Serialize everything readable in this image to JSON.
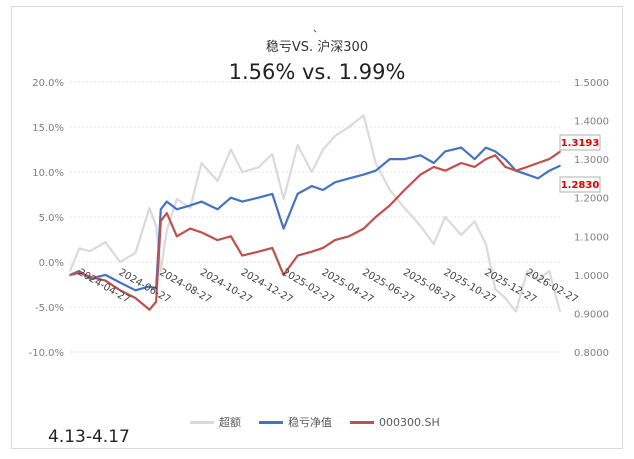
{
  "header": {
    "mark": "、",
    "title": "稳亏VS. 沪深300",
    "subtitle": "1.56% vs. 1.99%"
  },
  "footer": {
    "date_range": "4.13-4.17"
  },
  "colors": {
    "excess": "#dadada",
    "fund": "#4472c4",
    "index": "#c0504d",
    "grid": "#e3e3e3",
    "axis_text": "#7f7f7f"
  },
  "chart_data": {
    "type": "line",
    "title": "稳亏VS. 沪深300",
    "subtitle": "1.56% vs. 1.99%",
    "x_tick_labels": [
      "2024-04-27",
      "2024-06-27",
      "2024-08-27",
      "2024-10-27",
      "2024-12-27",
      "2025-02-27",
      "2025-04-27",
      "2025-06-27",
      "2025-08-27",
      "2025-10-27",
      "2025-12-27",
      "2026-02-27"
    ],
    "x_range": [
      "2024-04-13",
      "2026-04-17"
    ],
    "y_left": {
      "range": [
        -10,
        20
      ],
      "ticks": [
        "20.0%",
        "15.0%",
        "10.0%",
        "5.0%",
        "0.0%",
        "-5.0%",
        "-10.0%"
      ]
    },
    "y_right": {
      "range": [
        0.8,
        1.5
      ],
      "ticks": [
        "1.5000",
        "1.4000",
        "1.3000",
        "1.2000",
        "1.1000",
        "1.0000",
        "0.9000",
        "0.8000"
      ]
    },
    "grid": true,
    "legend_position": "bottom",
    "end_labels": [
      "1.3193",
      "1.2830"
    ],
    "series": [
      {
        "name": "超额",
        "axis": "left",
        "x": [
          "2024-04-13",
          "2024-04-27",
          "2024-05-13",
          "2024-06-05",
          "2024-06-27",
          "2024-07-20",
          "2024-08-10",
          "2024-08-20",
          "2024-08-27",
          "2024-09-05",
          "2024-09-20",
          "2024-10-10",
          "2024-10-27",
          "2024-11-20",
          "2024-12-10",
          "2024-12-27",
          "2025-01-20",
          "2025-02-10",
          "2025-02-27",
          "2025-03-20",
          "2025-04-10",
          "2025-04-27",
          "2025-05-15",
          "2025-06-05",
          "2025-06-27",
          "2025-07-15",
          "2025-08-05",
          "2025-08-27",
          "2025-09-20",
          "2025-10-10",
          "2025-10-27",
          "2025-11-20",
          "2025-12-10",
          "2025-12-27",
          "2026-01-10",
          "2026-01-25",
          "2026-02-10",
          "2026-02-27",
          "2026-03-15",
          "2026-04-01",
          "2026-04-17"
        ],
        "y": [
          -1,
          1.5,
          1.2,
          2.2,
          0,
          1.0,
          6.0,
          4.0,
          -1.0,
          3.5,
          7.0,
          6.0,
          11.0,
          9.0,
          12.5,
          10.0,
          10.5,
          12.0,
          7.0,
          13.0,
          10.0,
          12.5,
          14.0,
          15.0,
          16.3,
          11.0,
          8.0,
          6.0,
          4.0,
          2.0,
          5.0,
          3.0,
          4.5,
          2.0,
          -3.0,
          -4.0,
          -5.5,
          -1.0,
          -2.0,
          -1.0,
          -5.5
        ]
      },
      {
        "name": "稳亏净值",
        "axis": "right",
        "x": [
          "2024-04-13",
          "2024-04-27",
          "2024-05-13",
          "2024-06-05",
          "2024-06-27",
          "2024-07-20",
          "2024-08-10",
          "2024-08-20",
          "2024-08-27",
          "2024-09-05",
          "2024-09-20",
          "2024-10-10",
          "2024-10-27",
          "2024-11-20",
          "2024-12-10",
          "2024-12-27",
          "2025-01-20",
          "2025-02-10",
          "2025-02-27",
          "2025-03-20",
          "2025-04-10",
          "2025-04-27",
          "2025-05-15",
          "2025-06-05",
          "2025-06-27",
          "2025-07-15",
          "2025-08-05",
          "2025-08-27",
          "2025-09-20",
          "2025-10-10",
          "2025-10-27",
          "2025-11-20",
          "2025-12-10",
          "2025-12-27",
          "2026-01-10",
          "2026-01-25",
          "2026-02-10",
          "2026-02-27",
          "2026-03-15",
          "2026-04-01",
          "2026-04-17"
        ],
        "y": [
          1.0,
          1.01,
          0.99,
          1.0,
          0.98,
          0.96,
          0.97,
          0.965,
          1.17,
          1.19,
          1.17,
          1.18,
          1.19,
          1.17,
          1.2,
          1.19,
          1.2,
          1.21,
          1.12,
          1.21,
          1.23,
          1.22,
          1.24,
          1.25,
          1.26,
          1.27,
          1.3,
          1.3,
          1.31,
          1.29,
          1.32,
          1.33,
          1.3,
          1.33,
          1.32,
          1.3,
          1.27,
          1.26,
          1.25,
          1.27,
          1.283
        ]
      },
      {
        "name": "000300.SH",
        "axis": "right",
        "x": [
          "2024-04-13",
          "2024-04-27",
          "2024-05-13",
          "2024-06-05",
          "2024-06-27",
          "2024-07-20",
          "2024-08-10",
          "2024-08-20",
          "2024-08-27",
          "2024-09-05",
          "2024-09-20",
          "2024-10-10",
          "2024-10-27",
          "2024-11-20",
          "2024-12-10",
          "2024-12-27",
          "2025-01-20",
          "2025-02-10",
          "2025-02-27",
          "2025-03-20",
          "2025-04-10",
          "2025-04-27",
          "2025-05-15",
          "2025-06-05",
          "2025-06-27",
          "2025-07-15",
          "2025-08-05",
          "2025-08-27",
          "2025-09-20",
          "2025-10-10",
          "2025-10-27",
          "2025-11-20",
          "2025-12-10",
          "2025-12-27",
          "2026-01-10",
          "2026-01-25",
          "2026-02-10",
          "2026-02-27",
          "2026-03-15",
          "2026-04-01",
          "2026-04-17"
        ],
        "y": [
          1.0,
          1.005,
          0.995,
          0.985,
          0.96,
          0.94,
          0.91,
          0.93,
          1.14,
          1.16,
          1.1,
          1.12,
          1.11,
          1.09,
          1.1,
          1.05,
          1.06,
          1.07,
          1.0,
          1.05,
          1.06,
          1.07,
          1.09,
          1.1,
          1.12,
          1.15,
          1.18,
          1.22,
          1.26,
          1.28,
          1.27,
          1.29,
          1.28,
          1.3,
          1.31,
          1.28,
          1.27,
          1.28,
          1.29,
          1.3,
          1.3193
        ]
      }
    ]
  }
}
